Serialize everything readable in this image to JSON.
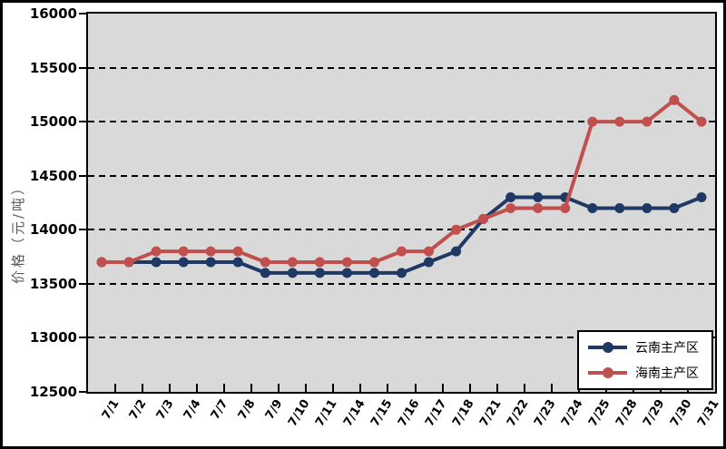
{
  "chart_data": {
    "type": "line",
    "title": "",
    "ylabel": "价格（元/吨）",
    "xlabel": "",
    "ylim": [
      12500,
      16000
    ],
    "ytick_step": 500,
    "yticks": [
      16000,
      15500,
      15000,
      14500,
      14000,
      13500,
      13000,
      12500
    ],
    "categories": [
      "7/1",
      "7/2",
      "7/3",
      "7/4",
      "7/7",
      "7/8",
      "7/9",
      "7/10",
      "7/11",
      "7/14",
      "7/15",
      "7/16",
      "7/17",
      "7/18",
      "7/21",
      "7/22",
      "7/23",
      "7/24",
      "7/25",
      "7/28",
      "7/29",
      "7/30",
      "7/31"
    ],
    "series": [
      {
        "name": "云南主产区",
        "color": "#1F3864",
        "values": [
          13700,
          13700,
          13700,
          13700,
          13700,
          13700,
          13600,
          13600,
          13600,
          13600,
          13600,
          13600,
          13700,
          13800,
          14100,
          14300,
          14300,
          14300,
          14200,
          14200,
          14200,
          14200,
          14300
        ]
      },
      {
        "name": "海南主产区",
        "color": "#C0504D",
        "values": [
          13700,
          13700,
          13800,
          13800,
          13800,
          13800,
          13700,
          13700,
          13700,
          13700,
          13700,
          13800,
          13800,
          14000,
          14100,
          14200,
          14200,
          14200,
          15000,
          15000,
          15000,
          15200,
          15000
        ]
      }
    ],
    "legend_position": "bottom-right",
    "grid": "dashed-horizontal",
    "marker": "circle"
  },
  "colors": {
    "plot_background": "#D9D9D9",
    "chart_background": "#FFFFFF",
    "gridline": "#000000",
    "axis_text": "#000000",
    "ylabel_text": "#595959",
    "series_blue": "#1F3864",
    "series_red": "#C0504D"
  }
}
